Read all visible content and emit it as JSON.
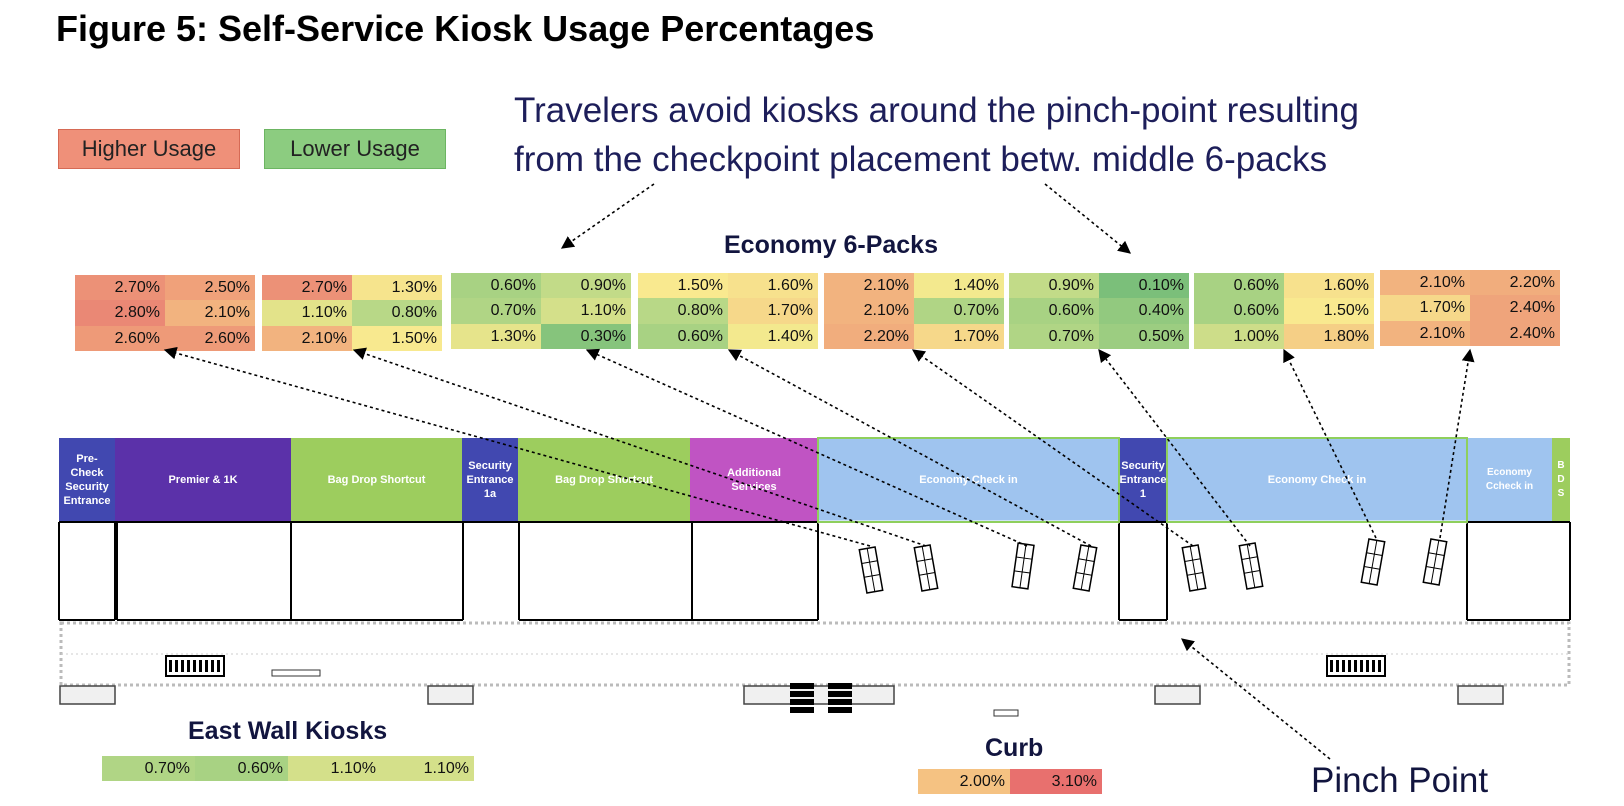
{
  "title": "Figure 5: Self-Service Kiosk Usage Percentages",
  "legend": {
    "higher": {
      "label": "Higher Usage",
      "color": "#ef9079"
    },
    "lower": {
      "label": "Lower Usage",
      "color": "#8ccc80"
    }
  },
  "annotation": {
    "line1": "Travelers avoid kiosks around the pinch-point resulting",
    "line2": "from the checkpoint placement betw. middle 6-packs"
  },
  "economy_heading": "Economy 6-Packs",
  "east_wall_heading": "East Wall Kiosks",
  "curb_heading": "Curb",
  "pinch_point_label": "Pinch Point",
  "six_packs": [
    {
      "cells": [
        {
          "v": "2.70%",
          "c": "#ec9177"
        },
        {
          "v": "2.50%",
          "c": "#f0a17a"
        },
        {
          "v": "2.80%",
          "c": "#ea8875"
        },
        {
          "v": "2.10%",
          "c": "#f2b37f"
        },
        {
          "v": "2.60%",
          "c": "#ee9a78"
        },
        {
          "v": "2.60%",
          "c": "#ee9a78"
        }
      ]
    },
    {
      "cells": [
        {
          "v": "2.70%",
          "c": "#ec9177"
        },
        {
          "v": "1.30%",
          "c": "#f6e48d"
        },
        {
          "v": "1.10%",
          "c": "#e3e38a"
        },
        {
          "v": "0.80%",
          "c": "#b8d887"
        },
        {
          "v": "2.10%",
          "c": "#f2b37f"
        },
        {
          "v": "1.50%",
          "c": "#f8e98f"
        }
      ]
    },
    {
      "cells": [
        {
          "v": "0.60%",
          "c": "#a8d283"
        },
        {
          "v": "0.90%",
          "c": "#c2db88"
        },
        {
          "v": "0.70%",
          "c": "#b0d585"
        },
        {
          "v": "1.10%",
          "c": "#d4e08a"
        },
        {
          "v": "1.30%",
          "c": "#e6e48b"
        },
        {
          "v": "0.30%",
          "c": "#86c47c"
        }
      ]
    },
    {
      "cells": [
        {
          "v": "1.50%",
          "c": "#f9e98f"
        },
        {
          "v": "1.60%",
          "c": "#f7e18d"
        },
        {
          "v": "0.80%",
          "c": "#b8d887"
        },
        {
          "v": "1.70%",
          "c": "#f6d88a"
        },
        {
          "v": "0.60%",
          "c": "#a8d283"
        },
        {
          "v": "1.40%",
          "c": "#f3e98e"
        }
      ]
    },
    {
      "cells": [
        {
          "v": "2.10%",
          "c": "#f2b37f"
        },
        {
          "v": "1.40%",
          "c": "#f3e98e"
        },
        {
          "v": "2.10%",
          "c": "#f2b37f"
        },
        {
          "v": "0.70%",
          "c": "#b0d585"
        },
        {
          "v": "2.20%",
          "c": "#f1ad7d"
        },
        {
          "v": "1.70%",
          "c": "#f6d88a"
        }
      ]
    },
    {
      "cells": [
        {
          "v": "0.90%",
          "c": "#c2db88"
        },
        {
          "v": "0.10%",
          "c": "#7bbf7a"
        },
        {
          "v": "0.60%",
          "c": "#a8d283"
        },
        {
          "v": "0.40%",
          "c": "#92c97f"
        },
        {
          "v": "0.70%",
          "c": "#b0d585"
        },
        {
          "v": "0.50%",
          "c": "#9ccd81"
        }
      ]
    },
    {
      "cells": [
        {
          "v": "0.60%",
          "c": "#a8d283"
        },
        {
          "v": "1.60%",
          "c": "#f7e18d"
        },
        {
          "v": "0.60%",
          "c": "#a8d283"
        },
        {
          "v": "1.50%",
          "c": "#f9e98f"
        },
        {
          "v": "1.00%",
          "c": "#cddd89"
        },
        {
          "v": "1.80%",
          "c": "#f5cf86"
        }
      ]
    },
    {
      "cells": [
        {
          "v": "2.10%",
          "c": "#f2b37f"
        },
        {
          "v": "2.20%",
          "c": "#f1ad7d"
        },
        {
          "v": "1.70%",
          "c": "#f6d88a"
        },
        {
          "v": "2.40%",
          "c": "#efa47b"
        },
        {
          "v": "2.10%",
          "c": "#f2b37f"
        },
        {
          "v": "2.40%",
          "c": "#efa47b"
        }
      ]
    }
  ],
  "east_wall_kiosks": [
    {
      "v": "0.70%",
      "c": "#b0d585"
    },
    {
      "v": "0.60%",
      "c": "#a8d283"
    },
    {
      "v": "1.10%",
      "c": "#d4e08a"
    },
    {
      "v": "1.10%",
      "c": "#d4e08a"
    }
  ],
  "curb": [
    {
      "v": "2.00%",
      "c": "#f5c282"
    },
    {
      "v": "3.10%",
      "c": "#e8706e"
    }
  ],
  "zones": [
    {
      "label": "Pre-\nCheck\nSecurity\nEntrance",
      "color": "#4148b0"
    },
    {
      "label": "Premier & 1K",
      "color": "#5b31a9"
    },
    {
      "label": "Bag Drop Shortcut",
      "color": "#9dcd5e"
    },
    {
      "label": "Security\nEntrance\n1a",
      "color": "#4148b0"
    },
    {
      "label": "Bag Drop Shortcut",
      "color": "#9dcd5e"
    },
    {
      "label": "Additional\nServices",
      "color": "#c054c3"
    },
    {
      "label": "Economy Check in",
      "color": "#9fc4ef"
    },
    {
      "label": "Security\nEntrance\n1",
      "color": "#4148b0"
    },
    {
      "label": "Economy Check in",
      "color": "#9fc4ef"
    },
    {
      "label": "Economy\nCcheck in",
      "color": "#9fc4ef"
    },
    {
      "label": "B\nD\nS",
      "color": "#9dcd5e"
    }
  ]
}
